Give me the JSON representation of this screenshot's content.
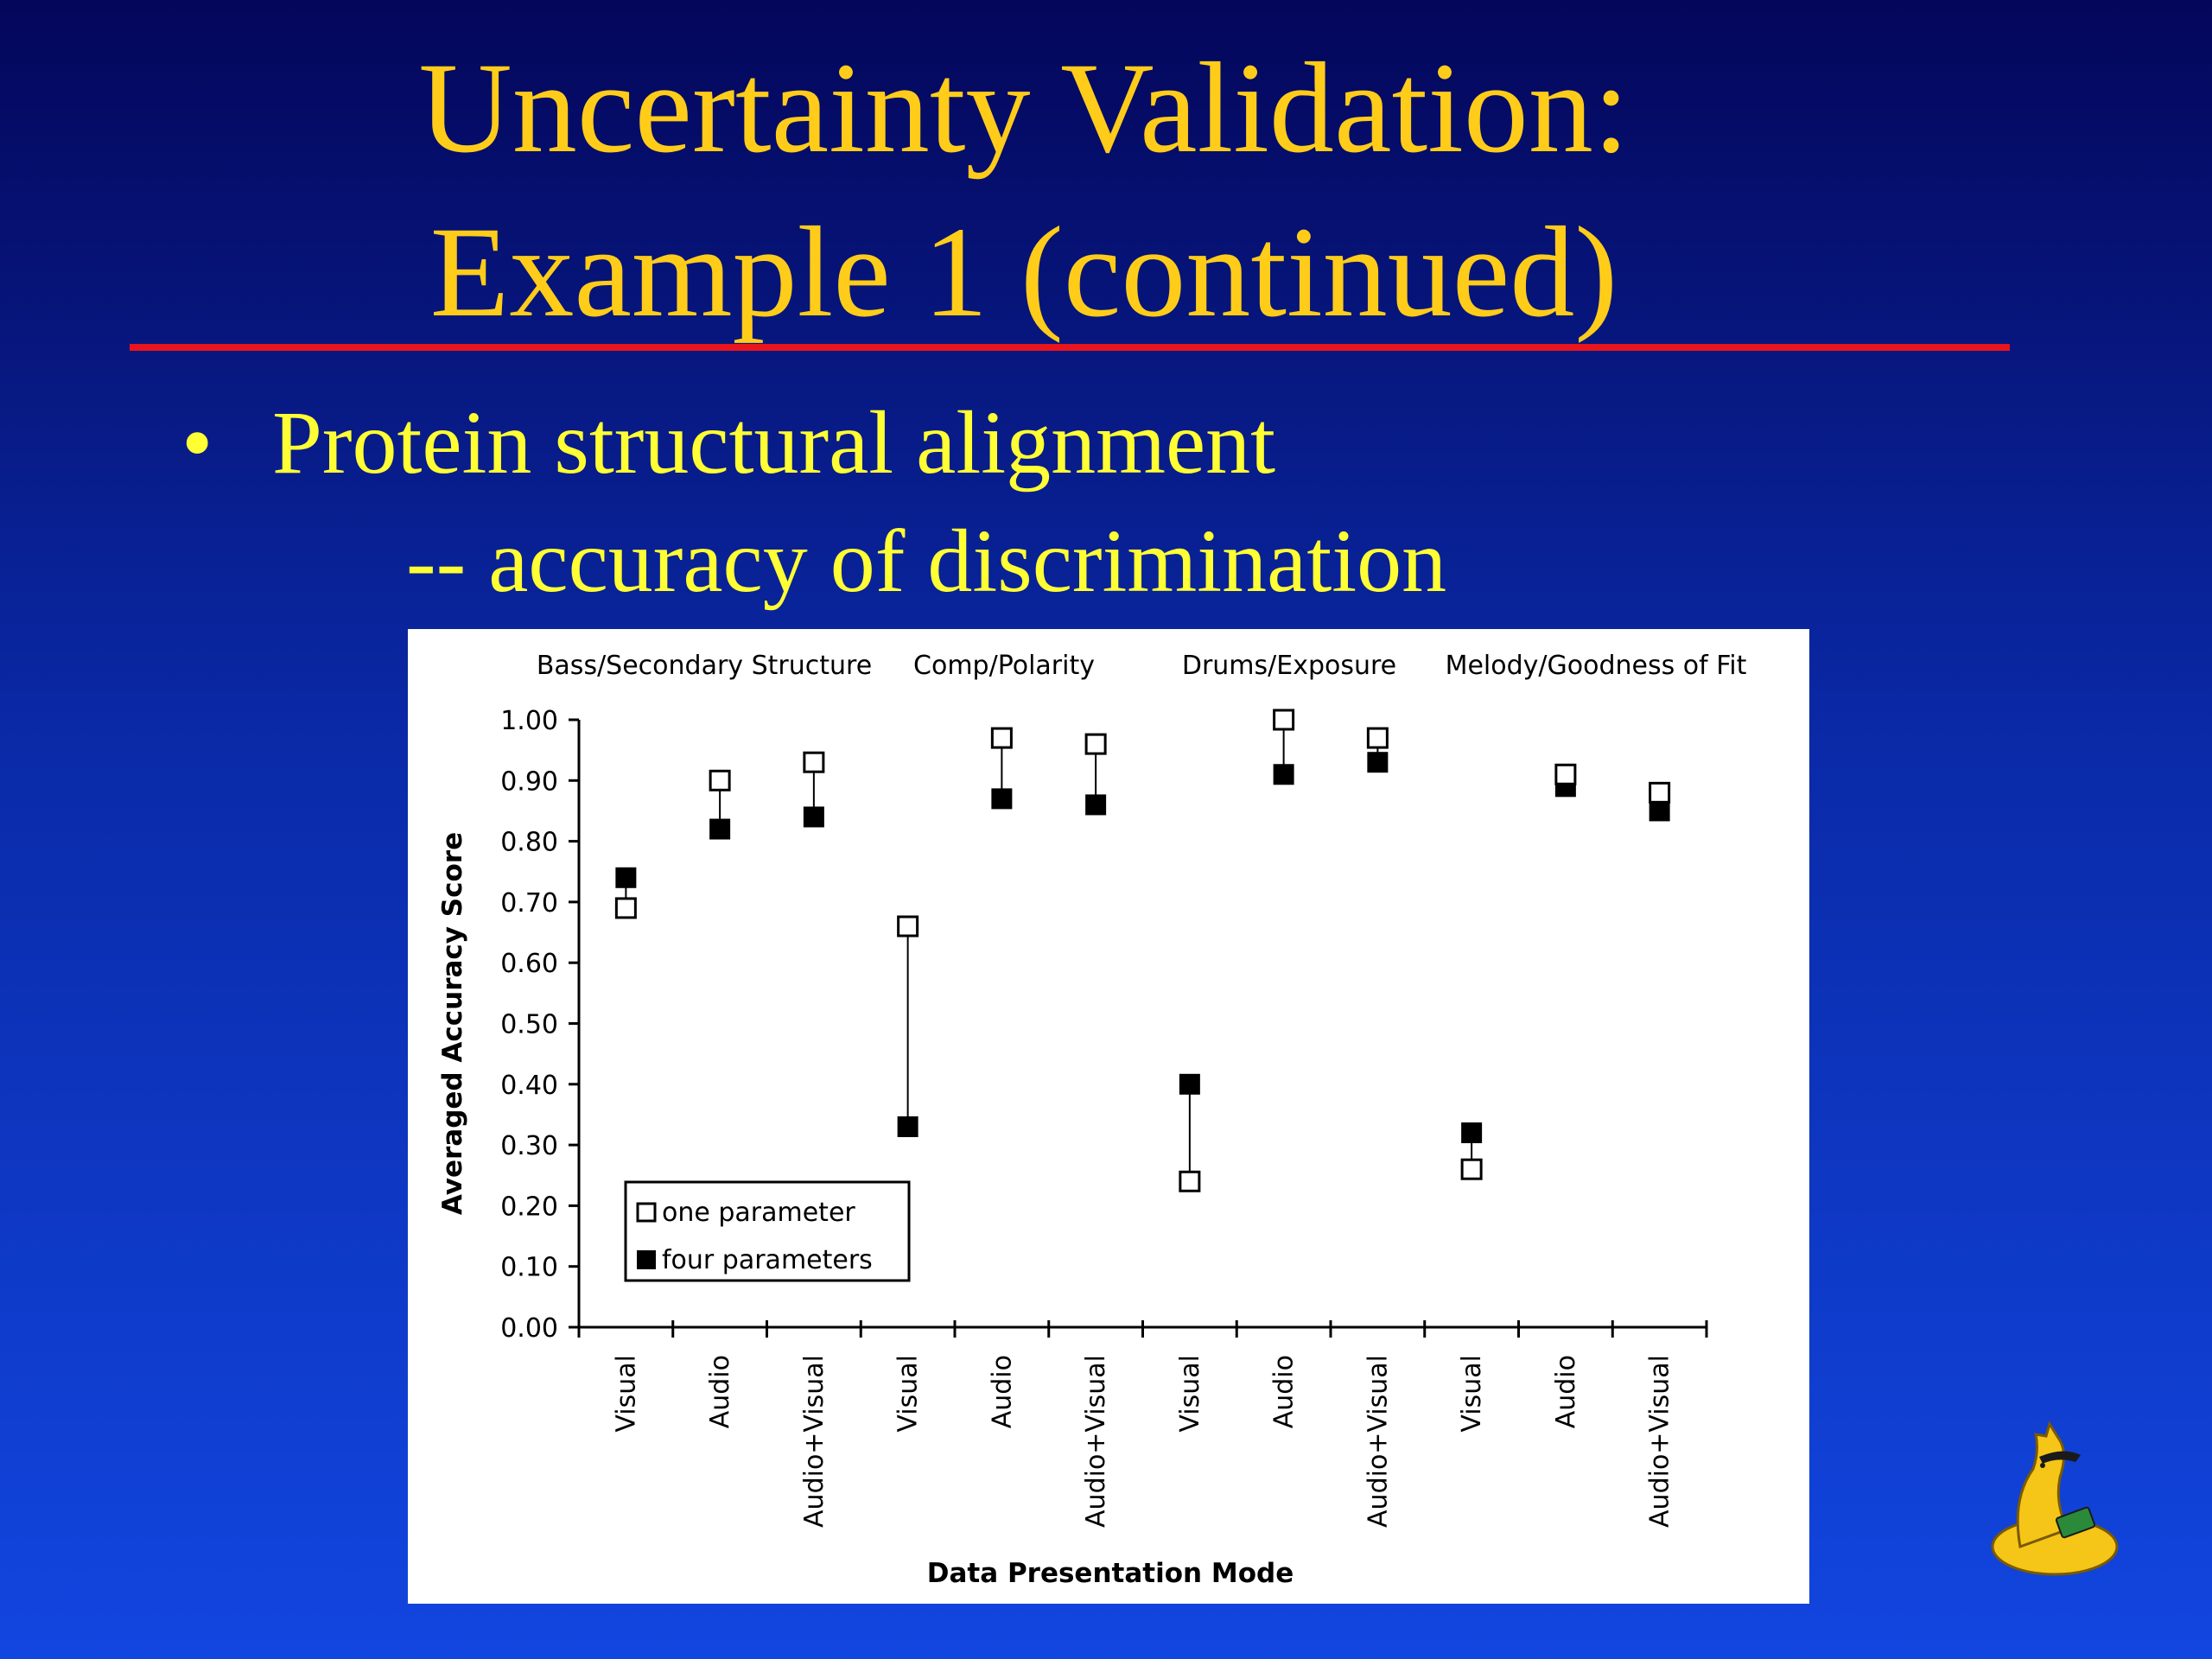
{
  "slide": {
    "title_line1": "Uncertainty Validation:",
    "title_line2": "Example 1 (continued)",
    "bullet_symbol": "•",
    "bullet_text": "Protein structural alignment",
    "sub_text": "-- accuracy of discrimination"
  },
  "colors": {
    "title": "#ffcc1a",
    "bullet": "#ffff33",
    "rule": "#e8141e",
    "background_top": "#04065a",
    "background_bottom": "#1246e0"
  },
  "chart_data": {
    "type": "scatter",
    "title": "",
    "group_labels": [
      "Bass/Secondary Structure",
      "Comp/Polarity",
      "Drums/Exposure",
      "Melody/Goodness of Fit"
    ],
    "categories": [
      "Visual",
      "Audio",
      "Audio+Visual",
      "Visual",
      "Audio",
      "Audio+Visual",
      "Visual",
      "Audio",
      "Audio+Visual",
      "Visual",
      "Audio",
      "Audio+Visual"
    ],
    "xlabel": "Data Presentation Mode",
    "ylabel": "Averaged Accuracy Score",
    "ylim": [
      0,
      1
    ],
    "yticks": [
      "0.00",
      "0.10",
      "0.20",
      "0.30",
      "0.40",
      "0.50",
      "0.60",
      "0.70",
      "0.80",
      "0.90",
      "1.00"
    ],
    "grid": false,
    "legend_position": "bottom-left",
    "series": [
      {
        "name": "one parameter",
        "marker": "open-square",
        "values": [
          0.69,
          0.9,
          0.93,
          0.66,
          0.97,
          0.96,
          0.24,
          1.0,
          0.97,
          0.26,
          0.91,
          0.88
        ]
      },
      {
        "name": "four parameters",
        "marker": "filled-square",
        "values": [
          0.74,
          0.82,
          0.84,
          0.33,
          0.87,
          0.86,
          0.4,
          0.91,
          0.93,
          0.32,
          0.89,
          0.85
        ]
      }
    ]
  }
}
